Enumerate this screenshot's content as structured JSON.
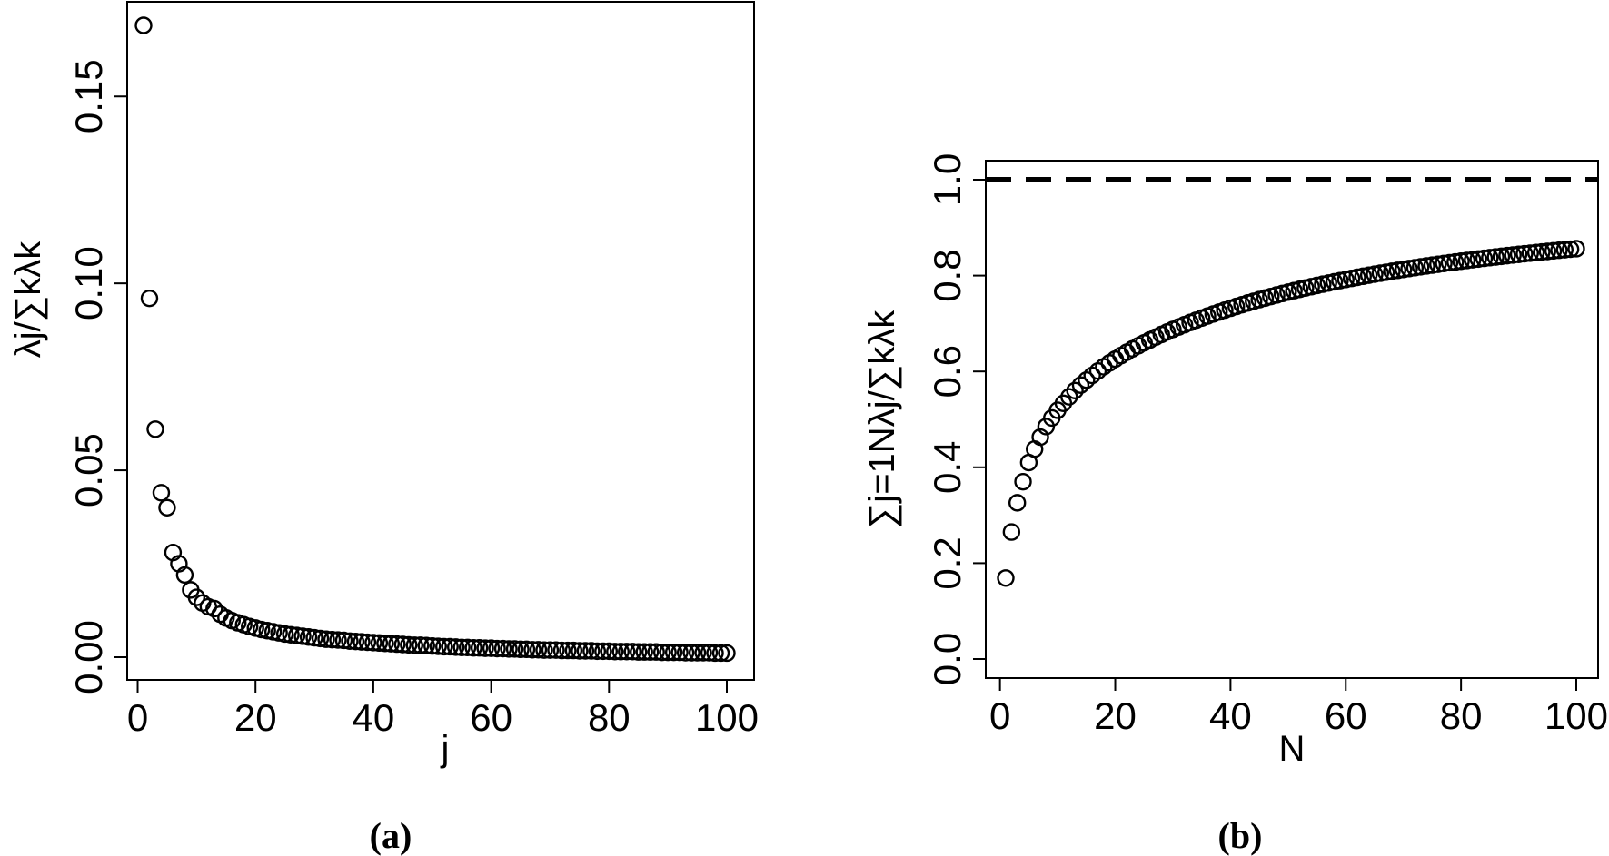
{
  "chart_data": [
    {
      "type": "scatter",
      "panel_label": "(a)",
      "xlabel": "j",
      "ylabel": "λj/∑kλk",
      "xlim": [
        1,
        100
      ],
      "ylim": [
        0,
        0.169
      ],
      "xticks": [
        0,
        20,
        40,
        60,
        80,
        100
      ],
      "yticks": [
        0.0,
        0.05,
        0.1,
        0.15
      ],
      "xtick_labels": [
        "0",
        "20",
        "40",
        "60",
        "80",
        "100"
      ],
      "ytick_labels": [
        "0.00",
        "0.05",
        "0.10",
        "0.15"
      ],
      "grid": false,
      "x_first": 1,
      "values": [
        0.169,
        0.096,
        0.061,
        0.044,
        0.04,
        0.028,
        0.025,
        0.022,
        0.018,
        0.016,
        0.0145,
        0.0135,
        0.013,
        0.0115,
        0.0105,
        0.0098,
        0.0092,
        0.0087,
        0.0082,
        0.0078,
        0.0074,
        0.0071,
        0.0068,
        0.0065,
        0.0062,
        0.006,
        0.0058,
        0.0056,
        0.0054,
        0.0052,
        0.005,
        0.0048,
        0.0047,
        0.0046,
        0.0045,
        0.0043,
        0.0042,
        0.0041,
        0.004,
        0.0039,
        0.0038,
        0.0037,
        0.0036,
        0.0035,
        0.0034,
        0.0033,
        0.0032,
        0.0032,
        0.0031,
        0.003,
        0.0029,
        0.0028,
        0.0028,
        0.0027,
        0.0026,
        0.0026,
        0.0025,
        0.0025,
        0.0024,
        0.0024,
        0.0023,
        0.0023,
        0.0022,
        0.0022,
        0.0021,
        0.0021,
        0.002,
        0.002,
        0.0019,
        0.0019,
        0.0019,
        0.0018,
        0.0018,
        0.0018,
        0.0017,
        0.0017,
        0.0017,
        0.0016,
        0.0016,
        0.0016,
        0.0015,
        0.0015,
        0.0015,
        0.0015,
        0.0014,
        0.0014,
        0.0014,
        0.0014,
        0.0013,
        0.0013,
        0.0013,
        0.0013,
        0.0012,
        0.0012,
        0.0012,
        0.0012,
        0.0012,
        0.0011,
        0.0011,
        0.0011
      ]
    },
    {
      "type": "scatter",
      "panel_label": "(b)",
      "xlabel": "N",
      "ylabel": "∑j=1Nλj/∑kλk",
      "xlim": [
        1,
        100
      ],
      "ylim": [
        0,
        1.0
      ],
      "xticks": [
        0,
        20,
        40,
        60,
        80,
        100
      ],
      "yticks": [
        0.0,
        0.2,
        0.4,
        0.6,
        0.8,
        1.0
      ],
      "xtick_labels": [
        "0",
        "20",
        "40",
        "60",
        "80",
        "100"
      ],
      "ytick_labels": [
        "0.0",
        "0.2",
        "0.4",
        "0.6",
        "0.8",
        "1.0"
      ],
      "grid": false,
      "reference_line": {
        "y": 1.0,
        "style": "dashed"
      },
      "x_first": 1,
      "values": [
        0.169,
        0.265,
        0.326,
        0.37,
        0.41,
        0.438,
        0.463,
        0.485,
        0.503,
        0.519,
        0.5335,
        0.547,
        0.56,
        0.5715,
        0.582,
        0.5918,
        0.601,
        0.6097,
        0.6179,
        0.6257,
        0.6331,
        0.6402,
        0.647,
        0.6535,
        0.6597,
        0.6657,
        0.6715,
        0.6771,
        0.6825,
        0.6877,
        0.6927,
        0.6975,
        0.7022,
        0.7068,
        0.7113,
        0.7156,
        0.7198,
        0.7239,
        0.7279,
        0.7318,
        0.7356,
        0.7393,
        0.7429,
        0.7464,
        0.7498,
        0.7531,
        0.7563,
        0.7595,
        0.7626,
        0.7656,
        0.7685,
        0.7713,
        0.7741,
        0.7768,
        0.7794,
        0.782,
        0.7845,
        0.787,
        0.7894,
        0.7918,
        0.7941,
        0.7964,
        0.7986,
        0.8008,
        0.8029,
        0.805,
        0.807,
        0.809,
        0.8109,
        0.8128,
        0.8147,
        0.8165,
        0.8183,
        0.8201,
        0.8218,
        0.8235,
        0.8252,
        0.8268,
        0.8284,
        0.83,
        0.8315,
        0.833,
        0.8345,
        0.836,
        0.8374,
        0.8388,
        0.8402,
        0.8416,
        0.8429,
        0.8442,
        0.8455,
        0.8468,
        0.848,
        0.8492,
        0.8504,
        0.8516,
        0.8528,
        0.8539,
        0.855,
        0.8561
      ]
    }
  ]
}
